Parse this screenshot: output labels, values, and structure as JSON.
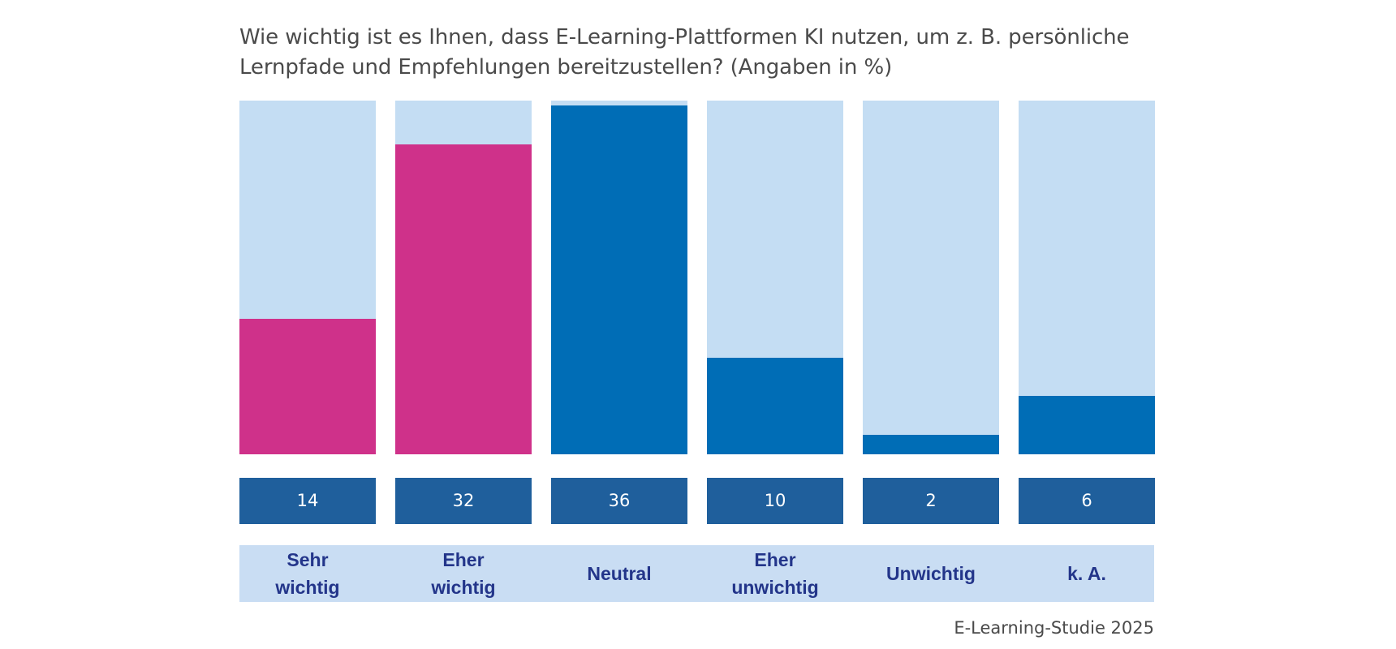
{
  "title": {
    "line1": "Wie wichtig ist es Ihnen, dass E-Learning-Plattformen KI nutzen, um z. B. persönliche",
    "line2": "Lernpfade und Empfehlungen bereitzustellen? (Angaben in %)"
  },
  "footer": "E-Learning-Studie 2025",
  "chart_data": {
    "type": "bar",
    "title": "Wie wichtig ist es Ihnen, dass E-Learning-Plattformen KI nutzen, um z. B. persönliche Lernpfade und Empfehlungen bereitzustellen? (Angaben in %)",
    "categories": [
      "Sehr wichtig",
      "Eher wichtig",
      "Neutral",
      "Eher unwichtig",
      "Unwichtig",
      "k. A."
    ],
    "values": [
      14,
      32,
      36,
      10,
      2,
      6
    ],
    "ylim": [
      0,
      36.5
    ],
    "grid": false,
    "legend": "none",
    "colors": {
      "background_bar": "#c4ddf3",
      "positive": "#cf318a",
      "other": "#006db6",
      "value_box": "#1f5f9c",
      "label_strip": "#c9ddf3",
      "label_text": "#23358a"
    },
    "bar_colors": [
      "#cf318a",
      "#cf318a",
      "#006db6",
      "#006db6",
      "#006db6",
      "#006db6"
    ],
    "label_lines": [
      [
        "Sehr",
        "wichtig"
      ],
      [
        "Eher",
        "wichtig"
      ],
      [
        "Neutral"
      ],
      [
        "Eher",
        "unwichtig"
      ],
      [
        "Unwichtig"
      ],
      [
        "k. A."
      ]
    ]
  }
}
